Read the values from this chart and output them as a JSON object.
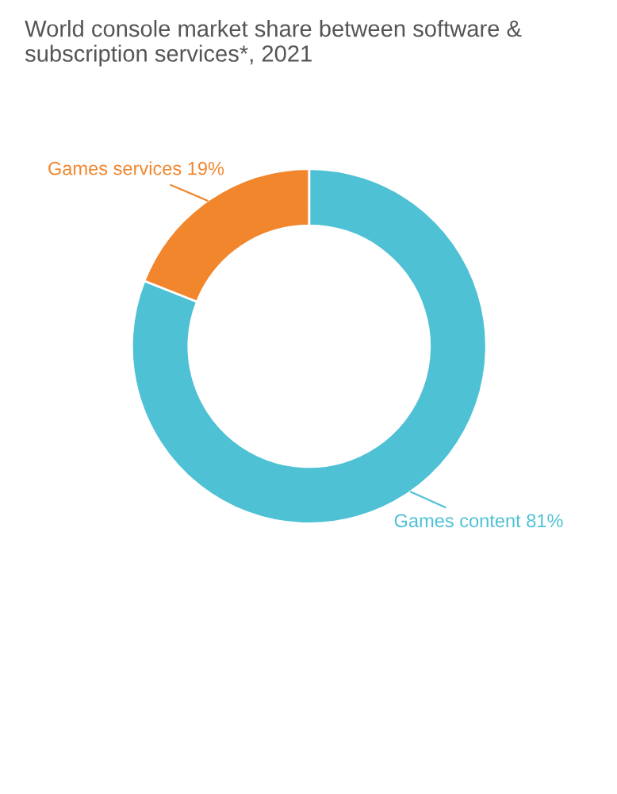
{
  "chart_data": {
    "type": "donut",
    "title": "World console market share between software & subscription services*, 2021",
    "categories": [
      "Games content",
      "Games services"
    ],
    "values": [
      81,
      19
    ],
    "value_labels": [
      "81%",
      "19%"
    ],
    "colors": [
      "#4fc1d5",
      "#f1862d"
    ],
    "legend": false
  }
}
